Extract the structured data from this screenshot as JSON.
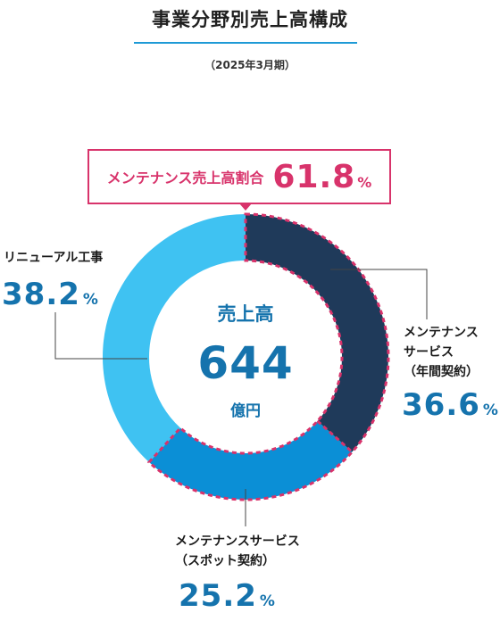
{
  "title": "事業分野別売上高構成",
  "subtitle": "（2025年3月期）",
  "ratio_box": {
    "label": "メンテナンス売上高割合",
    "value": "61.8",
    "unit": "%"
  },
  "center": {
    "label": "売上高",
    "value": "644",
    "unit": "億円"
  },
  "colors": {
    "maintenance_annual": "#1f3a5a",
    "maintenance_spot": "#0b8fd6",
    "renewal": "#3fc2f2",
    "highlight": "#d8336b",
    "accent_text": "#1573ad"
  },
  "segments": [
    {
      "label_lines": [
        "メンテナンス",
        "サービス",
        "（年間契約）"
      ],
      "value": "36.6",
      "unit": "%"
    },
    {
      "label_lines": [
        "メンテナンスサービス",
        "（スポット契約）"
      ],
      "value": "25.2",
      "unit": "%"
    },
    {
      "label_lines": [
        "リニューアル工事"
      ],
      "value": "38.2",
      "unit": "%"
    }
  ],
  "chart_data": {
    "type": "pie",
    "categories": [
      "メンテナンスサービス（年間契約）",
      "メンテナンスサービス（スポット契約）",
      "リニューアル工事"
    ],
    "values": [
      36.6,
      25.2,
      38.2
    ],
    "total": 644,
    "highlighted_share": 61.8
  }
}
